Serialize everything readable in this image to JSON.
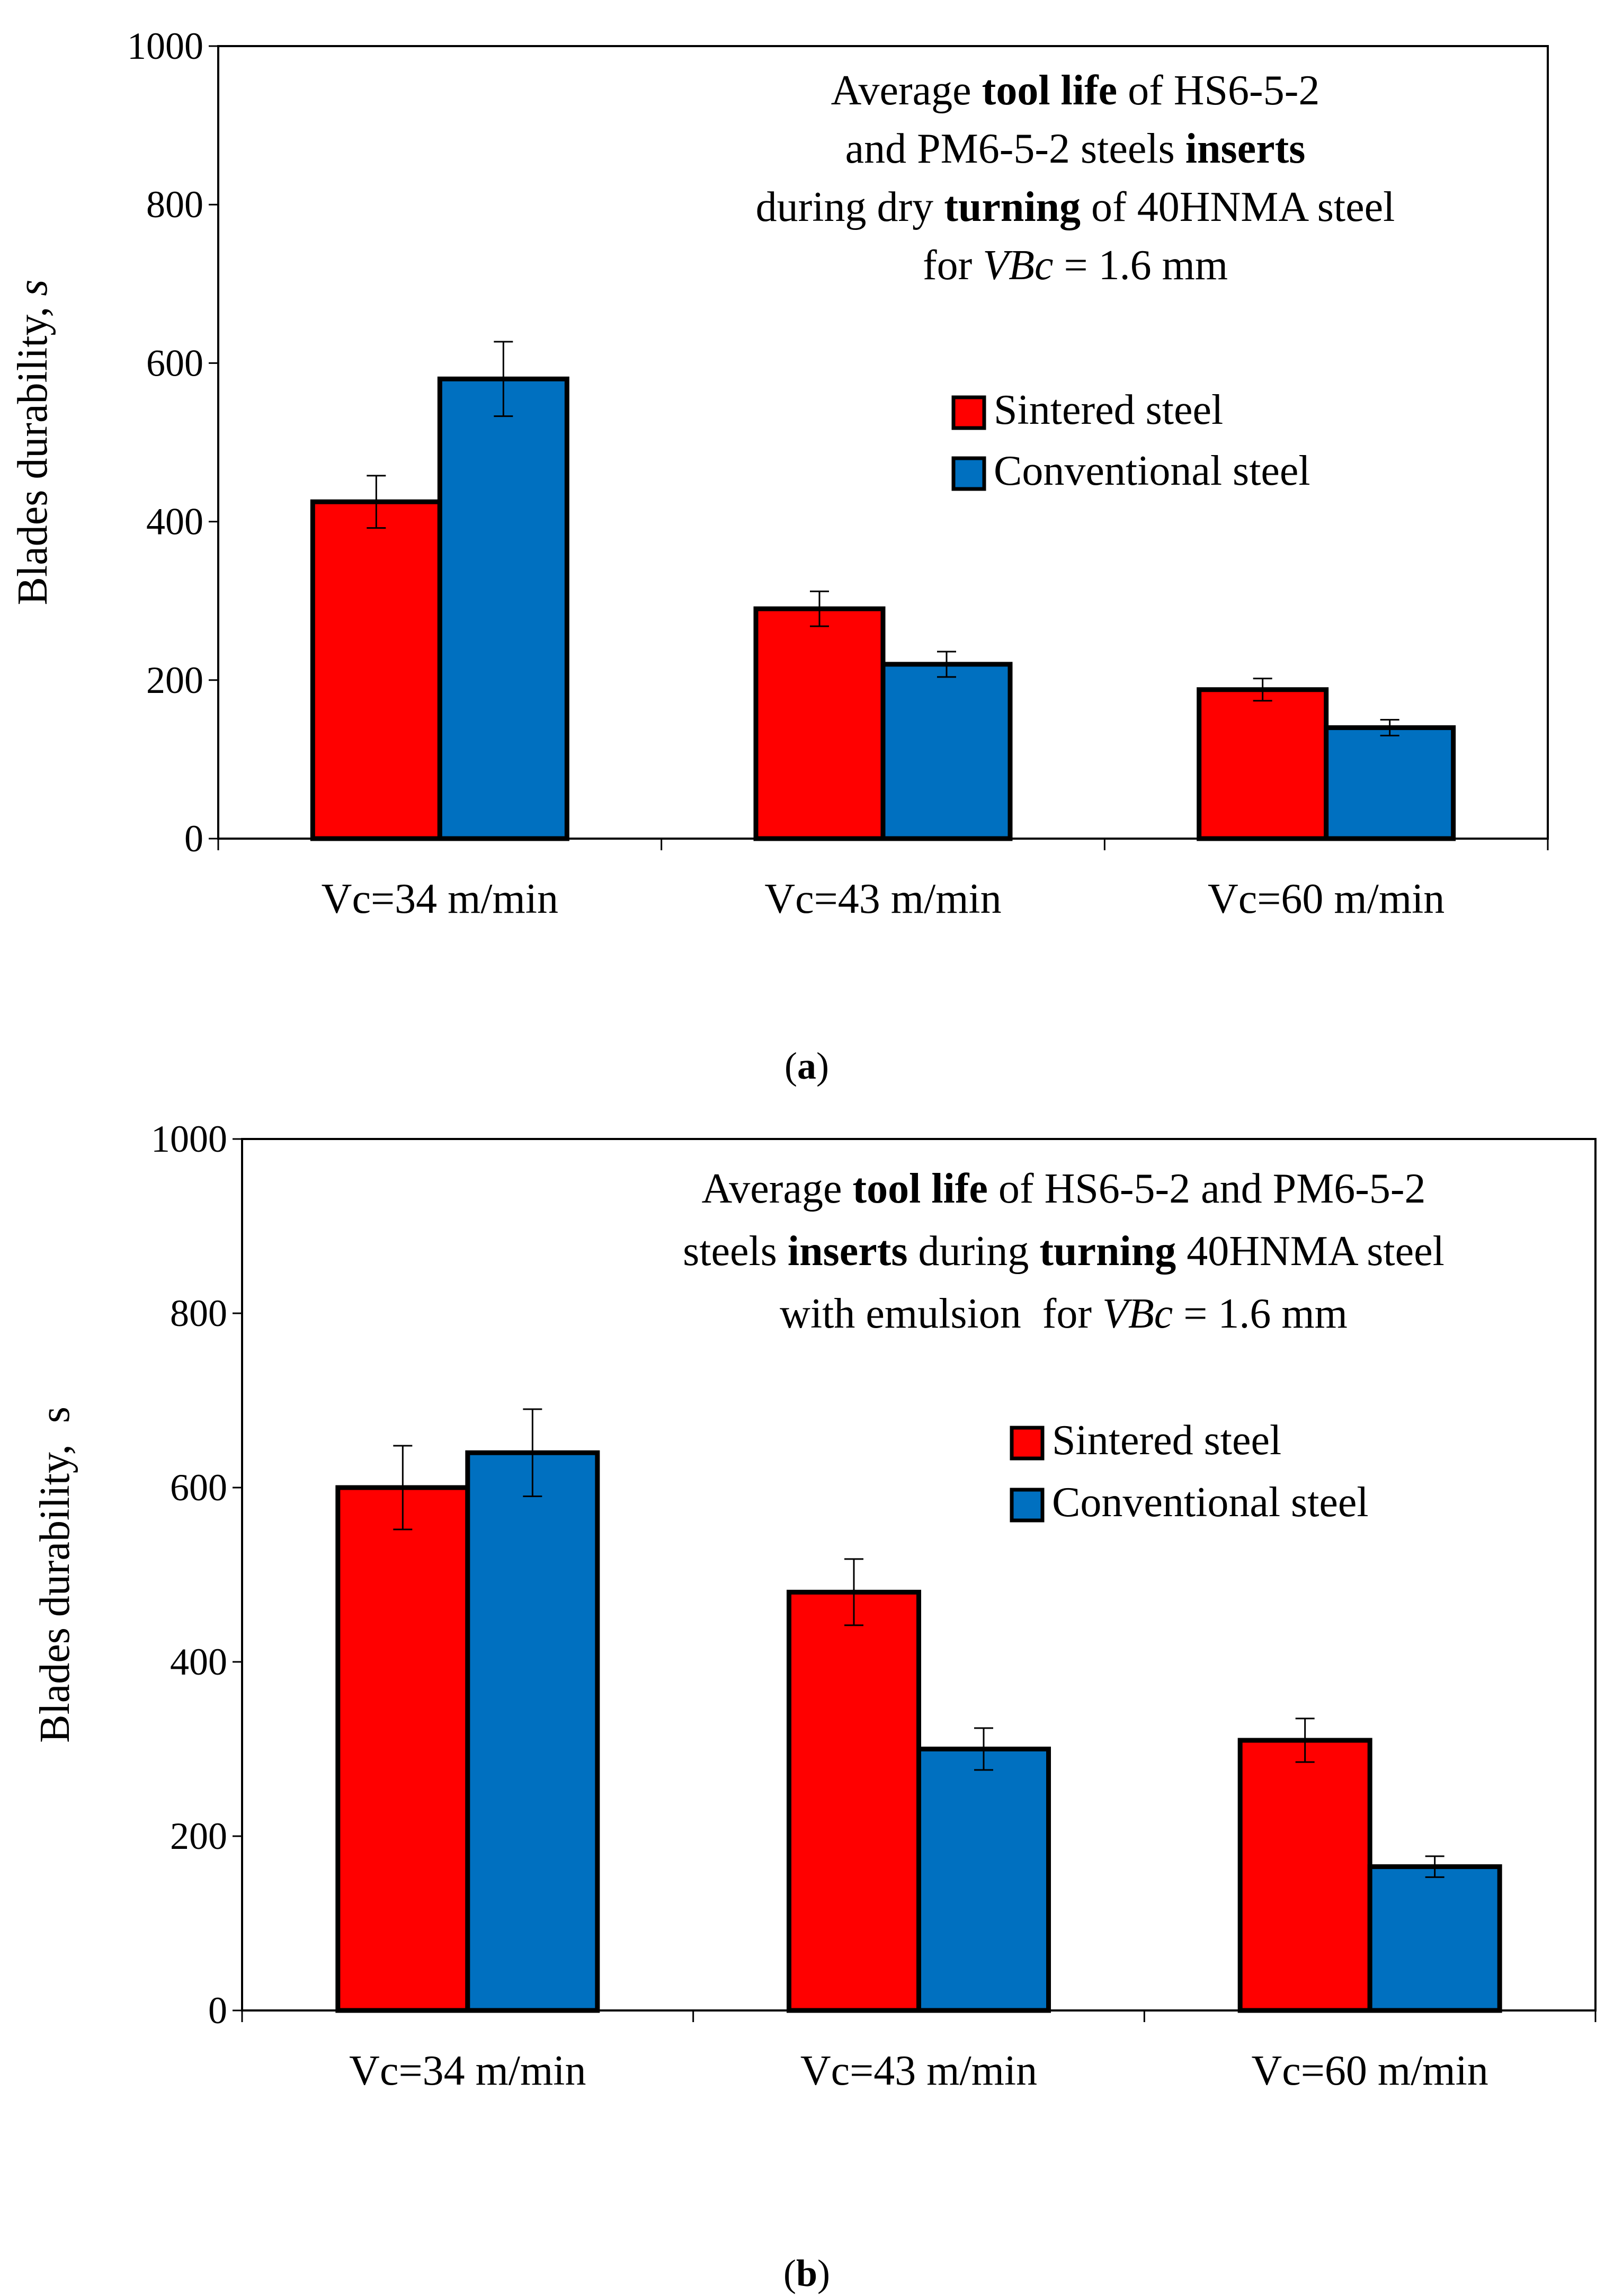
{
  "chart_data": [
    {
      "type": "bar",
      "title": {
        "lines": [
          [
            {
              "t": "Average ",
              "w": "normal",
              "s": "normal"
            },
            {
              "t": "tool life",
              "w": "bold",
              "s": "normal"
            },
            {
              "t": " of HS6-5-2",
              "w": "normal",
              "s": "normal"
            }
          ],
          [
            {
              "t": "and PM6-5-2 steels ",
              "w": "normal",
              "s": "normal"
            },
            {
              "t": "inserts",
              "w": "bold",
              "s": "normal"
            }
          ],
          [
            {
              "t": "during dry ",
              "w": "normal",
              "s": "normal"
            },
            {
              "t": "turning",
              "w": "bold",
              "s": "normal"
            },
            {
              "t": " of 40HNMA steel",
              "w": "normal",
              "s": "normal"
            }
          ],
          [
            {
              "t": "for ",
              "w": "normal",
              "s": "normal"
            },
            {
              "t": "VBc",
              "w": "normal",
              "s": "italic"
            },
            {
              "t": " = 1.6 mm",
              "w": "normal",
              "s": "normal"
            }
          ]
        ]
      },
      "ylabel": {
        "text": "Blades durability, ",
        "unit": "s",
        "unit_italic": true
      },
      "ylim": [
        0,
        1000
      ],
      "yticks": [
        0,
        200,
        400,
        600,
        800,
        1000
      ],
      "categories": [
        "Vc=34 m/min",
        "Vc=43 m/min",
        "Vc=60 m/min"
      ],
      "series": [
        {
          "name": "Sintered steel",
          "color": "#ff0000",
          "values": [
            425,
            290,
            188
          ],
          "errors": [
            33,
            22,
            14
          ]
        },
        {
          "name": "Conventional steel",
          "color": "#0070c0",
          "values": [
            580,
            220,
            140
          ],
          "errors": [
            47,
            16,
            10
          ]
        }
      ],
      "caption": "a"
    },
    {
      "type": "bar",
      "title": {
        "lines": [
          [
            {
              "t": "Average ",
              "w": "normal",
              "s": "normal"
            },
            {
              "t": "tool life",
              "w": "bold",
              "s": "normal"
            },
            {
              "t": " of HS6-5-2 and PM6-5-2",
              "w": "normal",
              "s": "normal"
            }
          ],
          [
            {
              "t": "steels ",
              "w": "normal",
              "s": "normal"
            },
            {
              "t": "inserts",
              "w": "bold",
              "s": "normal"
            },
            {
              "t": " during ",
              "w": "normal",
              "s": "normal"
            },
            {
              "t": "turning",
              "w": "bold",
              "s": "normal"
            },
            {
              "t": " 40HNMA steel",
              "w": "normal",
              "s": "normal"
            }
          ],
          [
            {
              "t": "with emulsion  for ",
              "w": "normal",
              "s": "normal"
            },
            {
              "t": "VBc",
              "w": "normal",
              "s": "italic"
            },
            {
              "t": " = 1.6 mm",
              "w": "normal",
              "s": "normal"
            }
          ]
        ]
      },
      "ylabel": {
        "text": "Blades durability,  ",
        "unit": "s",
        "unit_italic": false
      },
      "ylim": [
        0,
        1000
      ],
      "yticks": [
        0,
        200,
        400,
        600,
        800,
        1000
      ],
      "categories": [
        "Vc=34 m/min",
        "Vc=43 m/min",
        "Vc=60 m/min"
      ],
      "series": [
        {
          "name": "Sintered steel",
          "color": "#ff0000",
          "values": [
            600,
            480,
            310
          ],
          "errors": [
            48,
            38,
            25
          ]
        },
        {
          "name": "Conventional steel",
          "color": "#0070c0",
          "values": [
            640,
            300,
            165
          ],
          "errors": [
            50,
            24,
            12
          ]
        }
      ],
      "caption": "b"
    }
  ]
}
